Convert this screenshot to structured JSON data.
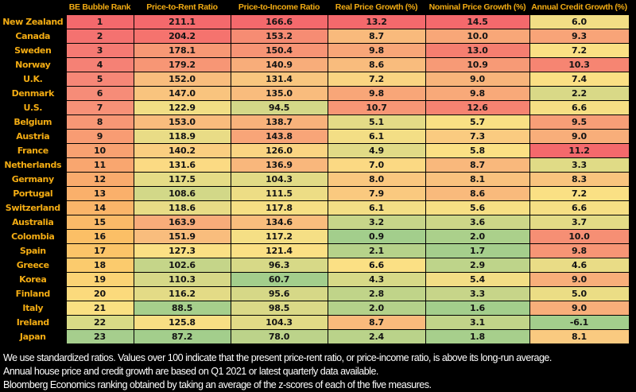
{
  "chart_data": {
    "type": "heatmap",
    "title": "",
    "columns": [
      "BE Bubble Rank",
      "Price-to-Rent Ratio",
      "Price-to-Income Ratio",
      "Real Price Growth (%)",
      "Nominal Price Growth (%)",
      "Annual Credit Growth (%)"
    ],
    "rows": [
      {
        "country": "New Zealand",
        "rank": 1,
        "values": [
          211.1,
          166.6,
          13.2,
          14.5,
          6.0
        ],
        "rank_color": "#F3696C"
      },
      {
        "country": "Canada",
        "rank": 2,
        "values": [
          204.2,
          153.2,
          8.7,
          10.0,
          9.3
        ],
        "rank_color": "#F47270"
      },
      {
        "country": "Sweden",
        "rank": 3,
        "values": [
          178.1,
          150.4,
          9.8,
          13.0,
          7.2
        ],
        "rank_color": "#F57A73"
      },
      {
        "country": "Norway",
        "rank": 4,
        "values": [
          179.2,
          140.9,
          8.6,
          10.9,
          10.3
        ],
        "rank_color": "#F58175"
      },
      {
        "country": "U.K.",
        "rank": 5,
        "values": [
          152.0,
          131.4,
          7.2,
          9.0,
          7.4
        ],
        "rank_color": "#F68777"
      },
      {
        "country": "Denmark",
        "rank": 6,
        "values": [
          147.0,
          135.0,
          9.8,
          9.8,
          2.2
        ],
        "rank_color": "#F68C78"
      },
      {
        "country": "U.S.",
        "rank": 7,
        "values": [
          122.9,
          94.5,
          10.7,
          12.6,
          6.6
        ],
        "rank_color": "#F79177"
      },
      {
        "country": "Belgium",
        "rank": 8,
        "values": [
          153.0,
          138.7,
          5.1,
          5.7,
          9.5
        ],
        "rank_color": "#F79775"
      },
      {
        "country": "Austria",
        "rank": 9,
        "values": [
          118.9,
          143.8,
          6.1,
          7.3,
          9.0
        ],
        "rank_color": "#F89C73"
      },
      {
        "country": "France",
        "rank": 10,
        "values": [
          140.2,
          126.0,
          4.9,
          5.8,
          11.2
        ],
        "rank_color": "#F8A171"
      },
      {
        "country": "Netherlands",
        "rank": 11,
        "values": [
          131.6,
          136.9,
          7.0,
          8.7,
          3.3
        ],
        "rank_color": "#F9A66F"
      },
      {
        "country": "Germany",
        "rank": 12,
        "values": [
          117.5,
          104.3,
          8.0,
          8.1,
          8.3
        ],
        "rank_color": "#F9AB6D"
      },
      {
        "country": "Portugal",
        "rank": 13,
        "values": [
          108.6,
          111.5,
          7.9,
          8.6,
          7.2
        ],
        "rank_color": "#FAB06B"
      },
      {
        "country": "Switzerland",
        "rank": 14,
        "values": [
          118.6,
          117.8,
          6.1,
          5.6,
          6.6
        ],
        "rank_color": "#FAB569"
      },
      {
        "country": "Australia",
        "rank": 15,
        "values": [
          163.9,
          134.6,
          3.2,
          3.6,
          3.7
        ],
        "rank_color": "#FABA68"
      },
      {
        "country": "Colombia",
        "rank": 16,
        "values": [
          151.9,
          117.2,
          0.9,
          2.0,
          10.0
        ],
        "rank_color": "#FBBF66"
      },
      {
        "country": "Spain",
        "rank": 17,
        "values": [
          127.3,
          121.4,
          2.1,
          1.7,
          9.8
        ],
        "rank_color": "#FBC468"
      },
      {
        "country": "Greece",
        "rank": 18,
        "values": [
          102.6,
          96.3,
          6.6,
          2.9,
          4.6
        ],
        "rank_color": "#FBCB6D"
      },
      {
        "country": "Korea",
        "rank": 19,
        "values": [
          110.3,
          60.7,
          4.3,
          5.4,
          9.0
        ],
        "rank_color": "#FBD375"
      },
      {
        "country": "Finland",
        "rank": 20,
        "values": [
          116.2,
          95.6,
          2.8,
          3.3,
          5.0
        ],
        "rank_color": "#FBDA7C"
      },
      {
        "country": "Italy",
        "rank": 21,
        "values": [
          88.5,
          98.5,
          2.0,
          1.6,
          9.0
        ],
        "rank_color": "#FAE082"
      },
      {
        "country": "Ireland",
        "rank": 22,
        "values": [
          125.8,
          104.3,
          8.7,
          3.1,
          -6.1
        ],
        "rank_color": "#D9DB86"
      },
      {
        "country": "Japan",
        "rank": 23,
        "values": [
          87.2,
          78.0,
          2.4,
          1.8,
          8.1
        ],
        "rank_color": "#A6CE8D"
      }
    ],
    "colorscale": {
      "min_green": "#A3CE8C",
      "mid_yellow": "#FBE084",
      "max_red": "#F4696C",
      "midpoint_rule": "50th percentile (median) of each column",
      "direction": "high values red, low values green, per column"
    },
    "layout_hints": {
      "grid": "thin black gridlines",
      "legend": "none",
      "value_format": "one decimal place"
    }
  },
  "footnotes": [
    "We use standardized ratios. Values over 100 indicate that the present price-rent ratio, or price-income ratio, is above its long-run average.",
    "Annual house price and credit growth are based on Q1 2021 or latest quarterly data available.",
    "Bloomberg Economics ranking obtained by taking an average of the z-scores of each of the five measures."
  ],
  "colors": {
    "background": "#000000",
    "label_gold": "#F3AC13",
    "footnote_text": "#FFFFFF",
    "cell_text": "#141414"
  }
}
